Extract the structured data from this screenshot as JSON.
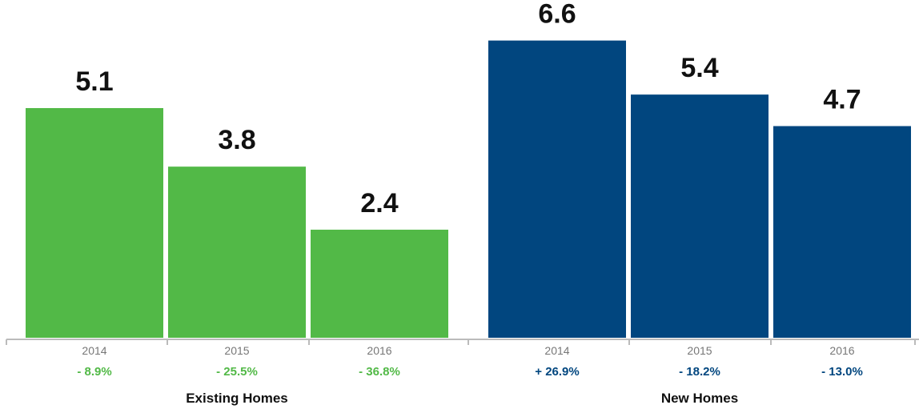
{
  "chart_data": {
    "type": "bar",
    "ylim": [
      0,
      7.5
    ],
    "grid": false,
    "groups": [
      {
        "name": "Existing Homes",
        "color": "#52b947",
        "categories": [
          "2014",
          "2015",
          "2016"
        ],
        "values": [
          5.1,
          3.8,
          2.4
        ],
        "value_labels": [
          "5.1",
          "3.8",
          "2.4"
        ],
        "changes": [
          "- 8.9%",
          "- 25.5%",
          "- 36.8%"
        ]
      },
      {
        "name": "New Homes",
        "color": "#01467f",
        "categories": [
          "2014",
          "2015",
          "2016"
        ],
        "values": [
          6.6,
          5.4,
          4.7
        ],
        "value_labels": [
          "6.6",
          "5.4",
          "4.7"
        ],
        "changes": [
          "+ 26.9%",
          "- 18.2%",
          "- 13.0%"
        ]
      }
    ]
  }
}
